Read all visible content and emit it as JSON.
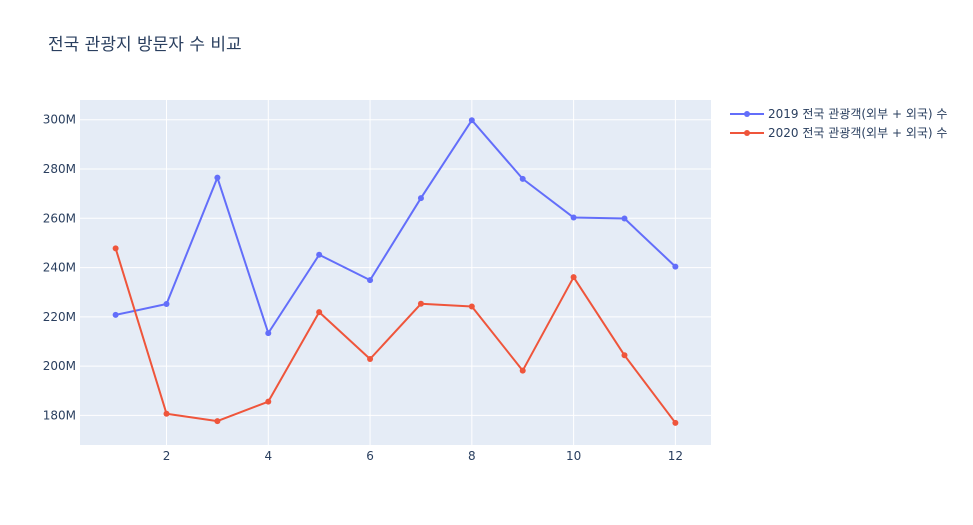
{
  "chart_data": {
    "type": "line",
    "title": "전국 관광지 방문자 수 비교",
    "xlabel": "",
    "ylabel": "",
    "x": [
      1,
      2,
      3,
      4,
      5,
      6,
      7,
      8,
      9,
      10,
      11,
      12
    ],
    "xlim": [
      0.3,
      12.7
    ],
    "ylim": [
      168000000,
      308000000
    ],
    "x_ticks": [
      2,
      4,
      6,
      8,
      10,
      12
    ],
    "y_ticks": [
      180000000,
      200000000,
      220000000,
      240000000,
      260000000,
      280000000,
      300000000
    ],
    "y_tick_labels": [
      "180M",
      "200M",
      "220M",
      "240M",
      "260M",
      "280M",
      "300M"
    ],
    "grid": true,
    "legend_position": "top-right outside",
    "plot_bgcolor": "#e5ecf6",
    "series": [
      {
        "name": "2019 전국 관광객(외부 + 외국) 수",
        "color": "#636efa",
        "values": [
          220800000,
          225200000,
          276500000,
          213400000,
          245200000,
          234900000,
          268200000,
          299800000,
          276000000,
          260300000,
          259900000,
          240400000
        ]
      },
      {
        "name": "2020 전국 관광객(외부 + 외국) 수",
        "color": "#ef553b",
        "values": [
          247800000,
          180700000,
          177700000,
          185600000,
          221900000,
          202900000,
          225300000,
          224200000,
          198200000,
          236100000,
          204400000,
          177000000
        ]
      }
    ]
  }
}
